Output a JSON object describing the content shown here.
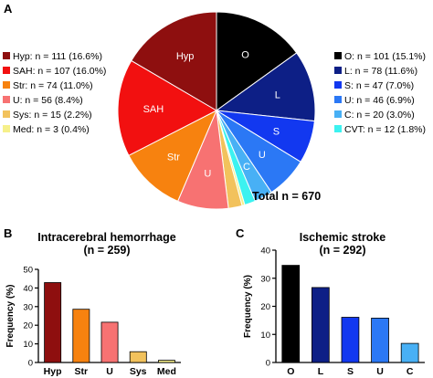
{
  "panels": {
    "a": "A",
    "b": "B",
    "c": "C"
  },
  "chart_data": [
    {
      "type": "pie",
      "total_label": "Total n = 670",
      "slices": [
        {
          "short": "O",
          "legend": "O: n = 101 (15.1%)",
          "value": 101,
          "percent": 15.1,
          "color": "#000000",
          "label_color": "#ffffff"
        },
        {
          "short": "L",
          "legend": "L: n = 78 (11.6%)",
          "value": 78,
          "percent": 11.6,
          "color": "#0d1f86",
          "label_color": "#ffffff"
        },
        {
          "short": "S",
          "legend": "S: n = 47 (7.0%)",
          "value": 47,
          "percent": 7.0,
          "color": "#1238f0",
          "label_color": "#ffffff"
        },
        {
          "short": "U",
          "legend": "U: n = 46 (6.9%)",
          "value": 46,
          "percent": 6.9,
          "color": "#2b78f5",
          "label_color": "#ffffff"
        },
        {
          "short": "C",
          "legend": "C: n = 20 (3.0%)",
          "value": 20,
          "percent": 3.0,
          "color": "#48b0f5",
          "label_color": "#ffffff"
        },
        {
          "short": "",
          "legend": "CVT: n = 12 (1.8%)",
          "value": 12,
          "percent": 1.8,
          "color": "#3cf2f0",
          "label_color": "#ffffff"
        },
        {
          "short": "",
          "legend": "Med: n = 3 (0.4%)",
          "value": 3,
          "percent": 0.4,
          "color": "#f6f08a",
          "label_color": "#000000"
        },
        {
          "short": "",
          "legend": "Sys: n = 15 (2.2%)",
          "value": 15,
          "percent": 2.2,
          "color": "#f2c25c",
          "label_color": "#000000"
        },
        {
          "short": "U",
          "legend": "U: n = 56 (8.4%)",
          "value": 56,
          "percent": 8.4,
          "color": "#f77272",
          "label_color": "#ffffff"
        },
        {
          "short": "Str",
          "legend": "Str: n = 74 (11.0%)",
          "value": 74,
          "percent": 11.0,
          "color": "#f7820f",
          "label_color": "#ffffff"
        },
        {
          "short": "SAH",
          "legend": "SAH: n = 107 (16.0%)",
          "value": 107,
          "percent": 16.0,
          "color": "#f21010",
          "label_color": "#ffffff"
        },
        {
          "short": "Hyp",
          "legend": "Hyp: n = 111 (16.6%)",
          "value": 111,
          "percent": 16.6,
          "color": "#8e0f0f",
          "label_color": "#ffffff"
        }
      ],
      "legend_left_order": [
        11,
        10,
        9,
        8,
        7,
        6
      ],
      "legend_right_order": [
        0,
        1,
        2,
        3,
        4,
        5
      ]
    },
    {
      "type": "bar",
      "title": "Intracerebral hemorrhage",
      "subtitle": "(n = 259)",
      "ylabel": "Frequency (%)",
      "ylim": [
        0,
        50
      ],
      "yticks": [
        0,
        10,
        20,
        30,
        40,
        50
      ],
      "categories": [
        "Hyp",
        "Str",
        "U",
        "Sys",
        "Med"
      ],
      "values": [
        42.9,
        28.6,
        21.6,
        5.8,
        1.2
      ],
      "colors": [
        "#8e0f0f",
        "#f7820f",
        "#f77272",
        "#f2c25c",
        "#f6f08a"
      ]
    },
    {
      "type": "bar",
      "title": "Ischemic stroke",
      "subtitle": "(n = 292)",
      "ylabel": "Frequency (%)",
      "ylim": [
        0,
        40
      ],
      "yticks": [
        0,
        10,
        20,
        30,
        40
      ],
      "categories": [
        "O",
        "L",
        "S",
        "U",
        "C"
      ],
      "values": [
        34.6,
        26.7,
        16.1,
        15.8,
        6.8
      ],
      "colors": [
        "#000000",
        "#0d1f86",
        "#1238f0",
        "#2b78f5",
        "#48b0f5"
      ]
    }
  ]
}
